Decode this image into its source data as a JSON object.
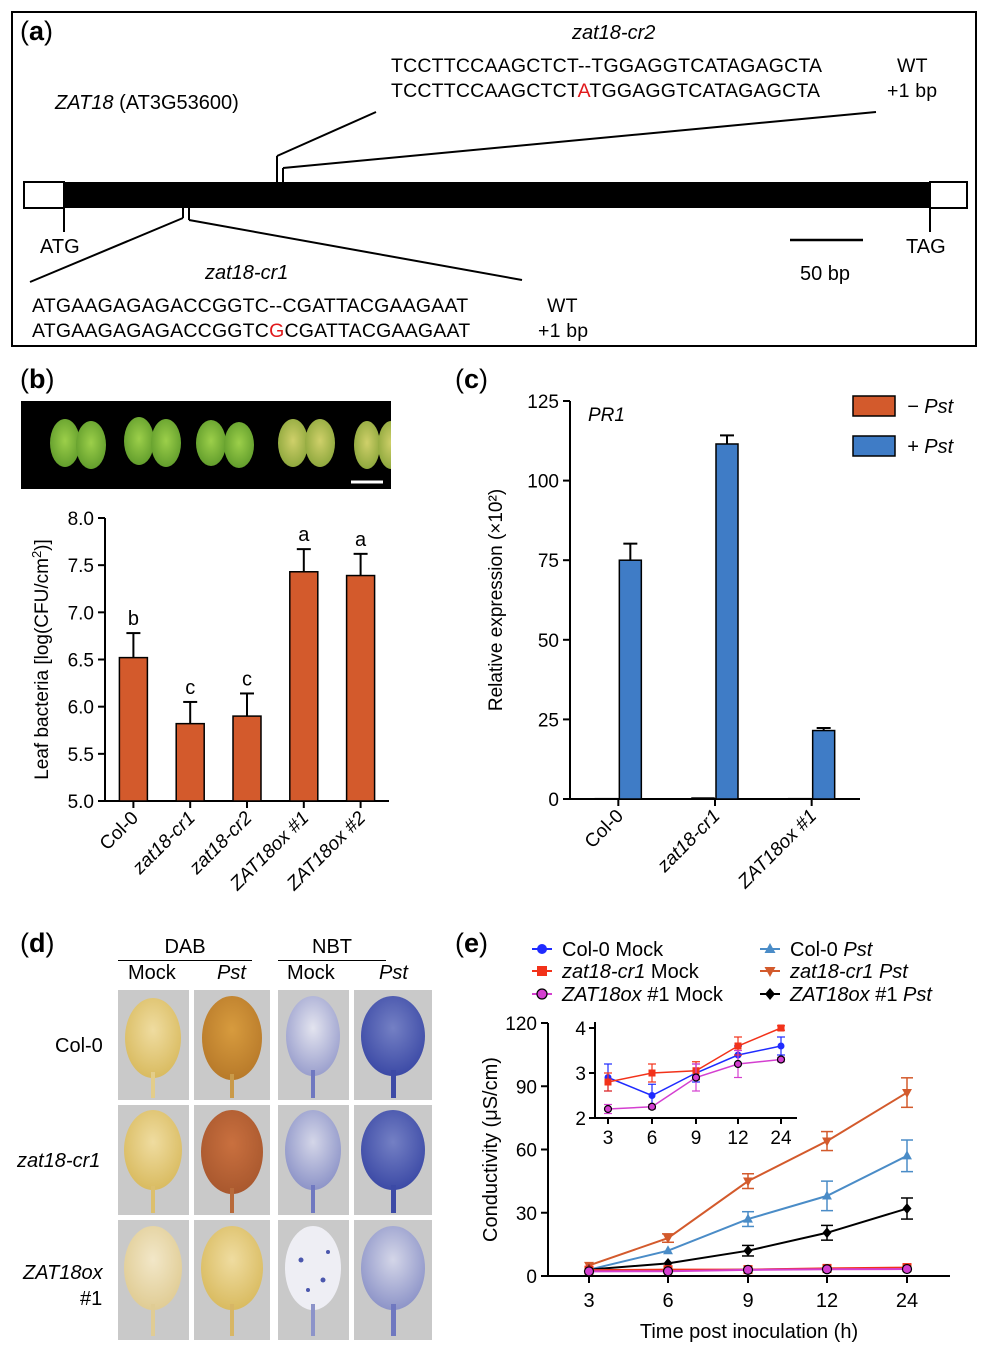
{
  "panel_a": {
    "label": "a",
    "gene_name": "ZAT18",
    "gene_id": "(AT3G53600)",
    "start_codon": "ATG",
    "stop_codon": "TAG",
    "scale_bar": "50 bp",
    "cr2": {
      "name": "zat18-cr2",
      "wt_prefix": "TCCTTCCAAGCTCT--TGGAGGTCATAGAGCTA",
      "mut_prefix": "TCCTTCCAAGCTCT",
      "mut_base": "A",
      "mut_suffix": "TGGAGGTCATAGAGCTA",
      "wt_tag": "WT",
      "mut_tag": "+1 bp"
    },
    "cr1": {
      "name": "zat18-cr1",
      "wt_prefix": "ATGAAGAGAGACCGGTC--CGATTACGAAGAAT",
      "mut_prefix": "ATGAAGAGAGACCGGTC",
      "mut_base": "G",
      "mut_suffix": "CGATTACGAAGAAT",
      "wt_tag": "WT",
      "mut_tag": "+1 bp"
    }
  },
  "panel_b": {
    "label": "b",
    "photo_scale_bar": true,
    "chart_data": {
      "type": "bar",
      "ylabel": "Leaf bacteria [log(CFU/cm2)]",
      "ylim": [
        5.0,
        8.0
      ],
      "yticks": [
        "5.0",
        "5.5",
        "6.0",
        "6.5",
        "7.0",
        "7.5",
        "8.0"
      ],
      "categories": [
        "Col-0",
        "zat18-cr1",
        "zat18-cr2",
        "ZAT18ox #1",
        "ZAT18ox #2"
      ],
      "values": [
        6.52,
        5.82,
        5.9,
        7.43,
        7.39
      ],
      "errors": [
        0.26,
        0.23,
        0.24,
        0.24,
        0.23
      ],
      "letters": [
        "b",
        "c",
        "c",
        "a",
        "a"
      ],
      "color": "#d35a2c"
    }
  },
  "panel_c": {
    "label": "c",
    "gene": "PR1",
    "chart_data": {
      "type": "bar",
      "ylabel": "Relative expression (×10²)",
      "ylim": [
        0,
        125
      ],
      "yticks": [
        "0",
        "25",
        "50",
        "75",
        "100",
        "125"
      ],
      "categories": [
        "Col-0",
        "zat18-cr1",
        "ZAT18ox #1"
      ],
      "series": [
        {
          "name": "− Pst",
          "values": [
            0.1,
            0.3,
            0.1
          ],
          "errors": [
            0,
            0.1,
            0
          ],
          "color": "#d35a2c"
        },
        {
          "name": "+ Pst",
          "values": [
            75,
            111.5,
            21.5
          ],
          "errors": [
            5.2,
            2.7,
            0.8
          ],
          "color": "#3f7cc6"
        }
      ],
      "legend": "top-right"
    }
  },
  "panel_d": {
    "label": "d",
    "stain1": "DAB",
    "stain2": "NBT",
    "cols": [
      "Mock",
      "Pst",
      "Mock",
      "Pst"
    ],
    "rows": [
      "Col-0",
      "zat18-cr1",
      "ZAT18ox",
      "#1"
    ]
  },
  "panel_e": {
    "label": "e",
    "chart_data": {
      "type": "line",
      "xlabel": "Time post inoculation (h)",
      "ylabel": "Conductivity (μS/cm)",
      "x": [
        "3",
        "6",
        "9",
        "12",
        "24"
      ],
      "ylim": [
        0,
        120
      ],
      "yticks": [
        "0",
        "30",
        "60",
        "90",
        "120"
      ],
      "series": [
        {
          "name": "Col-0 Mock",
          "values": [
            2.9,
            2.5,
            3.0,
            3.4,
            3.6
          ],
          "errors": [
            0.3,
            0.25,
            0.2,
            0.2,
            0.2
          ],
          "color": "#1f2bff",
          "marker": "circle"
        },
        {
          "name": "zat18-cr1 Mock",
          "values": [
            2.8,
            3.0,
            3.05,
            3.6,
            4.0
          ],
          "errors": [
            0.2,
            0.2,
            0.2,
            0.2,
            0.05
          ],
          "color": "#f2321a",
          "marker": "square"
        },
        {
          "name": "ZAT18ox #1 Mock",
          "values": [
            2.2,
            2.25,
            2.9,
            3.2,
            3.3
          ],
          "errors": [
            0.1,
            0.05,
            0.3,
            0.3,
            0.05
          ],
          "color": "#d43fd0",
          "marker": "circle-open"
        },
        {
          "name": "Col-0 Pst",
          "values": [
            3.0,
            12,
            27,
            38,
            57
          ],
          "errors": [
            0.5,
            1,
            3.5,
            7,
            7.5
          ],
          "color": "#4a8cc7",
          "marker": "triangle"
        },
        {
          "name": "zat18-cr1 Pst",
          "values": [
            5,
            18,
            45,
            64,
            87
          ],
          "errors": [
            0.8,
            2,
            3.5,
            4.5,
            7
          ],
          "color": "#d35a2c",
          "marker": "triangle-down"
        },
        {
          "name": "ZAT18ox #1 Pst",
          "values": [
            3,
            6,
            12,
            20.5,
            32
          ],
          "errors": [
            0.3,
            0.5,
            2.5,
            3.5,
            5
          ],
          "color": "#000000",
          "marker": "diamond"
        }
      ],
      "inset": {
        "x": [
          "3",
          "6",
          "9",
          "12",
          "24"
        ],
        "ylim": [
          2,
          4
        ],
        "yticks": [
          "2",
          "3",
          "4"
        ],
        "series_indices": [
          0,
          1,
          2
        ]
      }
    }
  }
}
